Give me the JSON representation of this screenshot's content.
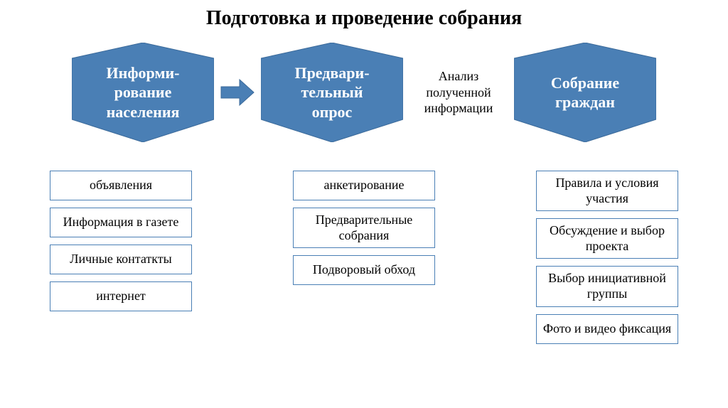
{
  "title": "Подготовка и проведение собрания",
  "title_fontsize": 28,
  "stage_color": "#4a7fb5",
  "stage_border": "#3b6a9a",
  "stage_text_color": "#ffffff",
  "item_border_color": "#4a7fb5",
  "item_fontsize": 18,
  "stage_fontsize": 22,
  "label_fontsize": 18,
  "banner_width": 200,
  "banner_height": 140,
  "arrow_width": 50,
  "arrow_height": 40,
  "stages": [
    {
      "label": "Информи-\nрование\nнаселения"
    },
    {
      "label": "Предвари-\nтельный\nопрос"
    },
    {
      "label": "Собрание\nграждан"
    }
  ],
  "between_label": "Анализ\nполученной\nинформации",
  "columns": [
    [
      "объявления",
      "Информация в газете",
      "Личные контаткты",
      "интернет"
    ],
    [
      "анкетирование",
      "Предварительные собрания",
      "Подворовый обход"
    ],
    [
      "Правила и условия участия",
      "Обсуждение и выбор проекта",
      "Выбор инициативной группы",
      "Фото и видео фиксация"
    ]
  ]
}
